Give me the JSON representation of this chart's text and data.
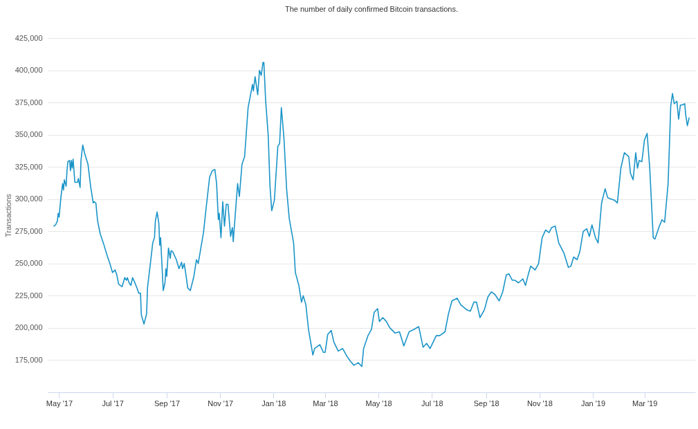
{
  "chart_data": {
    "type": "line",
    "title": "The number of daily confirmed Bitcoin transactions.",
    "ylabel": "Transactions",
    "xlim": [
      "2017-04-18",
      "2019-04-28"
    ],
    "ylim": [
      150000,
      425000
    ],
    "xticks": [
      {
        "value": "2017-05-01",
        "label": "May '17"
      },
      {
        "value": "2017-07-01",
        "label": "Jul '17"
      },
      {
        "value": "2017-09-01",
        "label": "Sep '17"
      },
      {
        "value": "2017-11-01",
        "label": "Nov '17"
      },
      {
        "value": "2018-01-01",
        "label": "Jan '18"
      },
      {
        "value": "2018-03-01",
        "label": "Mar '18"
      },
      {
        "value": "2018-05-01",
        "label": "May '18"
      },
      {
        "value": "2018-07-01",
        "label": "Jul '18"
      },
      {
        "value": "2018-09-01",
        "label": "Sep '18"
      },
      {
        "value": "2018-11-01",
        "label": "Nov '18"
      },
      {
        "value": "2019-01-01",
        "label": "Jan '19"
      },
      {
        "value": "2019-03-01",
        "label": "Mar '19"
      }
    ],
    "yticks": [
      {
        "value": 175000,
        "label": "175,000"
      },
      {
        "value": 200000,
        "label": "200,000"
      },
      {
        "value": 225000,
        "label": "225,000"
      },
      {
        "value": 250000,
        "label": "250,000"
      },
      {
        "value": 275000,
        "label": "275,000"
      },
      {
        "value": 300000,
        "label": "300,000"
      },
      {
        "value": 325000,
        "label": "325,000"
      },
      {
        "value": 350000,
        "label": "350,000"
      },
      {
        "value": 375000,
        "label": "375,000"
      },
      {
        "value": 400000,
        "label": "400,000"
      },
      {
        "value": 425000,
        "label": "425,000"
      }
    ],
    "grid": "y",
    "line_style": "solid",
    "marker": "none",
    "series": [
      {
        "color": "#1a94c8",
        "x": [
          "2017-04-25",
          "2017-04-27",
          "2017-04-29",
          "2017-04-30",
          "2017-05-01",
          "2017-05-03",
          "2017-05-05",
          "2017-05-06",
          "2017-05-07",
          "2017-05-09",
          "2017-05-10",
          "2017-05-11",
          "2017-05-13",
          "2017-05-14",
          "2017-05-15",
          "2017-05-16",
          "2017-05-17",
          "2017-05-19",
          "2017-05-22",
          "2017-05-23",
          "2017-05-25",
          "2017-05-26",
          "2017-05-28",
          "2017-05-30",
          "2017-06-03",
          "2017-06-06",
          "2017-06-09",
          "2017-06-10",
          "2017-06-12",
          "2017-06-14",
          "2017-06-17",
          "2017-06-21",
          "2017-06-25",
          "2017-06-28",
          "2017-07-01",
          "2017-07-04",
          "2017-07-06",
          "2017-07-08",
          "2017-07-12",
          "2017-07-15",
          "2017-07-17",
          "2017-07-18",
          "2017-07-20",
          "2017-07-22",
          "2017-07-24",
          "2017-07-26",
          "2017-07-29",
          "2017-07-31",
          "2017-08-02",
          "2017-08-03",
          "2017-08-06",
          "2017-08-09",
          "2017-08-10",
          "2017-08-14",
          "2017-08-16",
          "2017-08-18",
          "2017-08-19",
          "2017-08-21",
          "2017-08-23",
          "2017-08-24",
          "2017-08-25",
          "2017-08-28",
          "2017-08-30",
          "2017-08-31",
          "2017-09-01",
          "2017-09-03",
          "2017-09-05",
          "2017-09-06",
          "2017-09-08",
          "2017-09-12",
          "2017-09-15",
          "2017-09-18",
          "2017-09-19",
          "2017-09-21",
          "2017-09-23",
          "2017-09-25",
          "2017-09-28",
          "2017-10-02",
          "2017-10-05",
          "2017-10-07",
          "2017-10-10",
          "2017-10-13",
          "2017-10-16",
          "2017-10-20",
          "2017-10-23",
          "2017-10-26",
          "2017-10-28",
          "2017-10-30",
          "2017-10-31",
          "2017-11-02",
          "2017-11-04",
          "2017-11-06",
          "2017-11-08",
          "2017-11-10",
          "2017-11-13",
          "2017-11-15",
          "2017-11-16",
          "2017-11-21",
          "2017-11-23",
          "2017-11-26",
          "2017-11-29",
          "2017-12-01",
          "2017-12-03",
          "2017-12-08",
          "2017-12-09",
          "2017-12-11",
          "2017-12-14",
          "2017-12-16",
          "2017-12-18",
          "2017-12-20",
          "2017-12-21",
          "2017-12-23",
          "2017-12-26",
          "2017-12-28",
          "2017-12-30",
          "2018-01-02",
          "2018-01-06",
          "2018-01-08",
          "2018-01-10",
          "2018-01-13",
          "2018-01-16",
          "2018-01-19",
          "2018-01-24",
          "2018-01-26",
          "2018-01-30",
          "2018-02-02",
          "2018-02-04",
          "2018-02-07",
          "2018-02-10",
          "2018-02-15",
          "2018-02-17",
          "2018-02-23",
          "2018-02-27",
          "2018-03-01",
          "2018-03-04",
          "2018-03-08",
          "2018-03-11",
          "2018-03-16",
          "2018-03-21",
          "2018-03-26",
          "2018-03-30",
          "2018-04-03",
          "2018-04-08",
          "2018-04-12",
          "2018-04-14",
          "2018-04-19",
          "2018-04-23",
          "2018-04-26",
          "2018-04-30",
          "2018-05-02",
          "2018-05-06",
          "2018-05-10",
          "2018-05-14",
          "2018-05-20",
          "2018-05-25",
          "2018-05-30",
          "2018-06-05",
          "2018-06-11",
          "2018-06-16",
          "2018-06-21",
          "2018-06-25",
          "2018-06-29",
          "2018-07-06",
          "2018-07-10",
          "2018-07-16",
          "2018-07-20",
          "2018-07-24",
          "2018-07-30",
          "2018-08-03",
          "2018-08-10",
          "2018-08-14",
          "2018-08-18",
          "2018-08-21",
          "2018-08-25",
          "2018-08-30",
          "2018-09-03",
          "2018-09-07",
          "2018-09-11",
          "2018-09-16",
          "2018-09-20",
          "2018-09-24",
          "2018-09-27",
          "2018-10-01",
          "2018-10-04",
          "2018-10-08",
          "2018-10-13",
          "2018-10-16",
          "2018-10-19",
          "2018-10-22",
          "2018-10-27",
          "2018-10-31",
          "2018-11-04",
          "2018-11-08",
          "2018-11-12",
          "2018-11-15",
          "2018-11-19",
          "2018-11-23",
          "2018-11-29",
          "2018-12-04",
          "2018-12-07",
          "2018-12-10",
          "2018-12-14",
          "2018-12-17",
          "2018-12-21",
          "2018-12-25",
          "2018-12-28",
          "2018-12-31",
          "2019-01-04",
          "2019-01-07",
          "2019-01-11",
          "2019-01-15",
          "2019-01-18",
          "2019-01-22",
          "2019-01-26",
          "2019-01-29",
          "2019-02-02",
          "2019-02-06",
          "2019-02-11",
          "2019-02-13",
          "2019-02-16",
          "2019-02-19",
          "2019-02-21",
          "2019-02-23",
          "2019-02-26",
          "2019-03-01",
          "2019-03-04",
          "2019-03-07",
          "2019-03-11",
          "2019-03-13",
          "2019-03-18",
          "2019-03-21",
          "2019-03-24",
          "2019-03-28",
          "2019-03-31",
          "2019-04-02",
          "2019-04-04",
          "2019-04-07",
          "2019-04-09",
          "2019-04-11",
          "2019-04-13",
          "2019-04-16",
          "2019-04-17",
          "2019-04-19",
          "2019-04-21"
        ],
        "values": [
          279000,
          280000,
          283000,
          289000,
          286000,
          301000,
          312000,
          307000,
          315000,
          310000,
          322000,
          329000,
          330000,
          322000,
          330000,
          324000,
          331000,
          313000,
          313000,
          316000,
          309000,
          330000,
          342000,
          336000,
          327000,
          310000,
          297000,
          298000,
          297000,
          283000,
          273000,
          265000,
          256000,
          250000,
          243000,
          245000,
          241000,
          234000,
          232000,
          239000,
          237000,
          239000,
          235000,
          233000,
          239000,
          236000,
          231000,
          227000,
          227000,
          210000,
          203000,
          211000,
          231000,
          254000,
          266000,
          270000,
          283000,
          290000,
          281000,
          264000,
          270000,
          229000,
          235000,
          246000,
          240000,
          262000,
          254000,
          260000,
          259000,
          253000,
          246000,
          251000,
          246000,
          250000,
          241000,
          231000,
          229000,
          240000,
          253000,
          250000,
          262000,
          274000,
          293000,
          317000,
          322000,
          323000,
          312000,
          284000,
          289000,
          270000,
          298000,
          279000,
          296000,
          296000,
          271000,
          278000,
          267000,
          312000,
          302000,
          327000,
          333000,
          352000,
          371000,
          389000,
          384000,
          395000,
          381000,
          400000,
          396000,
          406000,
          406000,
          377000,
          349000,
          310000,
          291000,
          299000,
          341000,
          343000,
          371000,
          347000,
          308000,
          285000,
          266000,
          243000,
          233000,
          220000,
          225000,
          218000,
          199000,
          179000,
          184000,
          187000,
          181000,
          181000,
          195000,
          198000,
          189000,
          182000,
          184000,
          178000,
          174000,
          171000,
          173000,
          170000,
          184000,
          194000,
          199000,
          212000,
          215000,
          205000,
          208000,
          205000,
          200000,
          196000,
          197000,
          186000,
          197000,
          199000,
          201000,
          185000,
          188000,
          184000,
          194000,
          194000,
          197000,
          211000,
          221000,
          223000,
          218000,
          214000,
          213000,
          220000,
          220000,
          208000,
          214000,
          224000,
          228000,
          226000,
          221000,
          228000,
          241000,
          242000,
          237000,
          237000,
          235000,
          238000,
          233000,
          241000,
          248000,
          245000,
          250000,
          270000,
          276000,
          274000,
          278000,
          279000,
          266000,
          258000,
          247000,
          248000,
          255000,
          253000,
          259000,
          275000,
          277000,
          271000,
          280000,
          270000,
          266000,
          297000,
          308000,
          301000,
          300000,
          299000,
          297000,
          324000,
          336000,
          333000,
          320000,
          315000,
          336000,
          324000,
          330000,
          329000,
          346000,
          351000,
          324000,
          270000,
          269000,
          279000,
          284000,
          282000,
          312000,
          372000,
          382000,
          374000,
          376000,
          362000,
          373000,
          373000,
          374000,
          366000,
          357000,
          363000
        ]
      }
    ]
  }
}
